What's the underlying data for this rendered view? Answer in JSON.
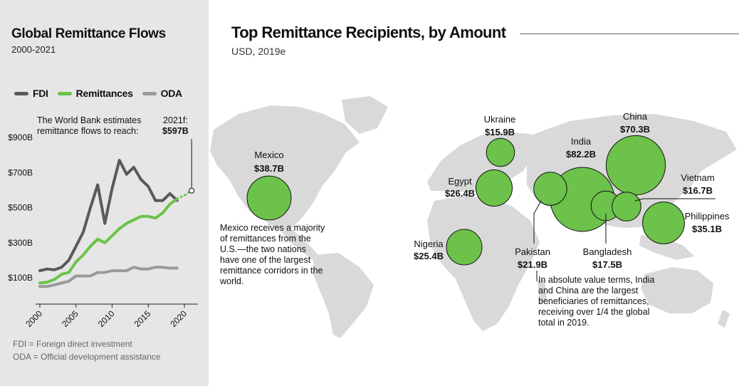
{
  "left_panel": {
    "title": "Global Remittance Flows",
    "subtitle": "2000-2021",
    "legend": [
      {
        "label": "FDI",
        "color": "#5a5a5a"
      },
      {
        "label": "Remittances",
        "color": "#6cc24a"
      },
      {
        "label": "ODA",
        "color": "#9a9a9a"
      }
    ],
    "note": "The World Bank estimates remittance flows to reach:",
    "forecast_year": "2021f:",
    "forecast_value": "$597B",
    "definitions": [
      "FDI = Foreign direct investment",
      "ODA = Official development assistance"
    ]
  },
  "chart_data": [
    {
      "type": "line",
      "title": "Global Remittance Flows",
      "subtitle": "2000-2021",
      "ylim": [
        0,
        1000
      ],
      "y_ticks": [
        "$100B",
        "$300B",
        "$500B",
        "$700B",
        "$900B"
      ],
      "y_tick_values": [
        100,
        300,
        500,
        700,
        900
      ],
      "x_ticks": [
        "2000",
        "2005",
        "2010",
        "2015",
        "2020"
      ],
      "x_tick_values": [
        2000,
        2005,
        2010,
        2015,
        2020
      ],
      "xlim": [
        2000,
        2021
      ],
      "grid": false,
      "series": [
        {
          "name": "FDI",
          "color": "#5a5a5a",
          "x": [
            2000,
            2001,
            2002,
            2003,
            2004,
            2005,
            2006,
            2007,
            2008,
            2009,
            2010,
            2011,
            2012,
            2013,
            2014,
            2015,
            2016,
            2017,
            2018,
            2019
          ],
          "y": [
            140,
            150,
            145,
            160,
            200,
            280,
            360,
            500,
            630,
            410,
            610,
            770,
            690,
            730,
            660,
            620,
            540,
            540,
            580,
            540
          ]
        },
        {
          "name": "Remittances",
          "color": "#6cc24a",
          "x": [
            2000,
            2001,
            2002,
            2003,
            2004,
            2005,
            2006,
            2007,
            2008,
            2009,
            2010,
            2011,
            2012,
            2013,
            2014,
            2015,
            2016,
            2017,
            2018,
            2019
          ],
          "y": [
            70,
            75,
            90,
            120,
            130,
            190,
            230,
            280,
            320,
            300,
            340,
            380,
            410,
            430,
            450,
            450,
            440,
            470,
            520,
            550
          ]
        },
        {
          "name": "ODA",
          "color": "#9a9a9a",
          "x": [
            2000,
            2001,
            2002,
            2003,
            2004,
            2005,
            2006,
            2007,
            2008,
            2009,
            2010,
            2011,
            2012,
            2013,
            2014,
            2015,
            2016,
            2017,
            2018,
            2019
          ],
          "y": [
            50,
            50,
            60,
            70,
            80,
            110,
            110,
            110,
            130,
            130,
            140,
            140,
            140,
            160,
            150,
            150,
            160,
            160,
            155,
            155
          ]
        },
        {
          "name": "Remittances forecast",
          "color": "#6cc24a",
          "dashed": true,
          "x": [
            2019,
            2020,
            2021
          ],
          "y": [
            550,
            570,
            597
          ]
        }
      ]
    },
    {
      "type": "bubble-map",
      "title": "Top Remittance Recipients, by Amount",
      "subtitle": "USD, 2019e",
      "unit": "USD billions",
      "countries": [
        {
          "name": "Mexico",
          "value": 38.7,
          "label": "$38.7B"
        },
        {
          "name": "Ukraine",
          "value": 15.9,
          "label": "$15.9B"
        },
        {
          "name": "Egypt",
          "value": 26.4,
          "label": "$26.4B"
        },
        {
          "name": "Nigeria",
          "value": 25.4,
          "label": "$25.4B"
        },
        {
          "name": "Pakistan",
          "value": 21.9,
          "label": "$21.9B"
        },
        {
          "name": "India",
          "value": 82.2,
          "label": "$82.2B"
        },
        {
          "name": "Bangladesh",
          "value": 17.5,
          "label": "$17.5B"
        },
        {
          "name": "China",
          "value": 70.3,
          "label": "$70.3B"
        },
        {
          "name": "Vietnam",
          "value": 16.7,
          "label": "$16.7B"
        },
        {
          "name": "Philippines",
          "value": 35.1,
          "label": "$35.1B"
        }
      ]
    }
  ],
  "main": {
    "title": "Top Remittance Recipients, by Amount",
    "subtitle": "USD, 2019e",
    "annotation_mexico": "Mexico receives a majority of remittances from the U.S.—the two nations have one of the largest remittance corridors in the world.",
    "annotation_india": "In absolute value terms, India and China are the largest beneficiaries of remittances, receiving over 1/4 the global total in 2019."
  },
  "colors": {
    "bubble_fill": "#6cc24a",
    "map_land": "#d9d9d9",
    "panel_bg": "#e6e6e6"
  }
}
